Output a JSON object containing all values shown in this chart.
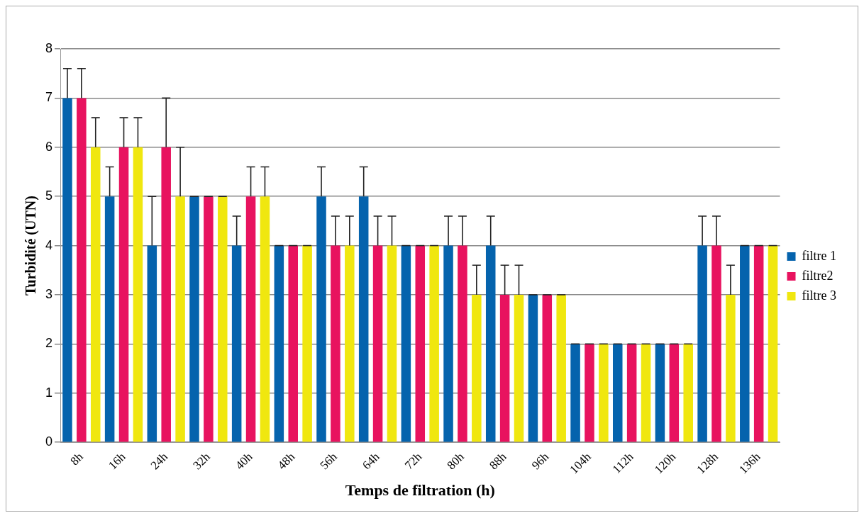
{
  "chart_data": {
    "type": "bar",
    "xlabel": "Temps de filtration (h)",
    "ylabel": "Turbidité (UTN)",
    "categories": [
      "8h",
      "16h",
      "24h",
      "32h",
      "40h",
      "48h",
      "56h",
      "64h",
      "72h",
      "80h",
      "88h",
      "96h",
      "104h",
      "112h",
      "120h",
      "128h",
      "136h"
    ],
    "series": [
      {
        "name": "filtre 1",
        "color": "#0563ad",
        "values": [
          7,
          5,
          4,
          5,
          4,
          4,
          5,
          5,
          4,
          4,
          4,
          3,
          2,
          2,
          2,
          4,
          4
        ],
        "errors": [
          [
            7,
            7.6
          ],
          [
            5,
            5.6
          ],
          [
            4,
            5
          ],
          [
            5,
            5
          ],
          [
            4,
            4.6
          ],
          [
            4,
            4
          ],
          [
            5,
            5.6
          ],
          [
            5,
            5.6
          ],
          [
            4,
            4
          ],
          [
            4,
            4.6
          ],
          [
            4,
            4.6
          ],
          [
            3,
            3
          ],
          [
            2,
            2
          ],
          [
            2,
            2
          ],
          [
            2,
            2
          ],
          [
            4,
            4.6
          ],
          [
            4,
            4
          ]
        ]
      },
      {
        "name": "filtre2",
        "color": "#e8135f",
        "values": [
          7,
          6,
          6,
          5,
          5,
          4,
          4,
          4,
          4,
          4,
          3,
          3,
          2,
          2,
          2,
          4,
          4
        ],
        "errors": [
          [
            7,
            7.6
          ],
          [
            6,
            6.6
          ],
          [
            6,
            7
          ],
          [
            5,
            5
          ],
          [
            5,
            5.6
          ],
          [
            4,
            4
          ],
          [
            4,
            4.6
          ],
          [
            4,
            4.6
          ],
          [
            4,
            4
          ],
          [
            4,
            4.6
          ],
          [
            3,
            3.6
          ],
          [
            3,
            3
          ],
          [
            2,
            2
          ],
          [
            2,
            2
          ],
          [
            2,
            2
          ],
          [
            4,
            4.6
          ],
          [
            4,
            4
          ]
        ]
      },
      {
        "name": "filtre 3",
        "color": "#f0e70f",
        "values": [
          6,
          6,
          5,
          5,
          5,
          4,
          4,
          4,
          4,
          3,
          3,
          3,
          2,
          2,
          2,
          3,
          4
        ],
        "errors": [
          [
            6,
            6.6
          ],
          [
            6,
            6.6
          ],
          [
            5,
            6
          ],
          [
            5,
            5
          ],
          [
            5,
            5.6
          ],
          [
            4,
            4
          ],
          [
            4,
            4.6
          ],
          [
            4,
            4.6
          ],
          [
            4,
            4
          ],
          [
            3,
            3.6
          ],
          [
            3,
            3.6
          ],
          [
            3,
            3
          ],
          [
            2,
            2
          ],
          [
            2,
            2
          ],
          [
            2,
            2
          ],
          [
            3,
            3.6
          ],
          [
            4,
            4
          ]
        ]
      }
    ],
    "ylim": [
      0,
      8
    ],
    "yticks": [
      0,
      1,
      2,
      3,
      4,
      5,
      6,
      7,
      8
    ],
    "grid": "y",
    "legend": "right"
  }
}
